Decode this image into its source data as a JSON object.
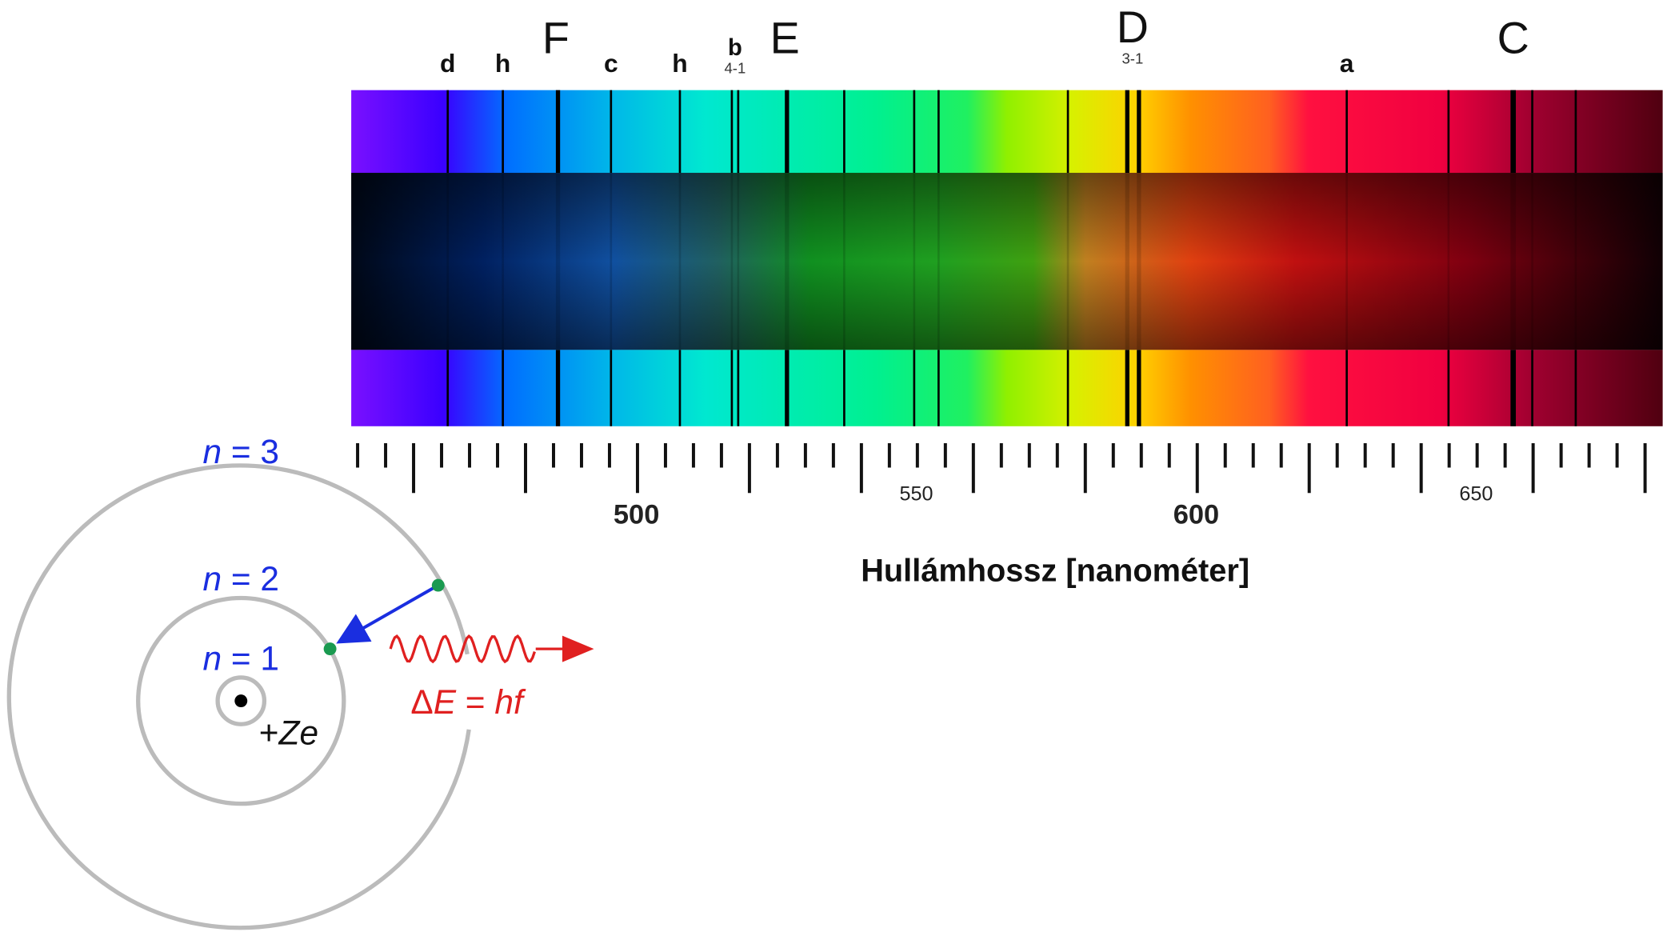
{
  "spectrum": {
    "line_labels": [
      {
        "text": "d"
      },
      {
        "text": "h"
      },
      {
        "text": "F"
      },
      {
        "text": "c"
      },
      {
        "text": "h"
      },
      {
        "text": "b",
        "sub": "4-1"
      },
      {
        "text": "E"
      },
      {
        "text": "D",
        "sub": "3-1"
      },
      {
        "text": "a"
      },
      {
        "text": "C"
      }
    ],
    "axis_labels": [
      "500",
      "550",
      "600",
      "650"
    ],
    "axis_title": "Hullámhossz [nanométer]"
  },
  "bohr_model": {
    "orbits": [
      {
        "symbol": "n",
        "rest": "= 3"
      },
      {
        "symbol": "n",
        "rest": "= 2"
      },
      {
        "symbol": "n",
        "rest": "= 1"
      }
    ],
    "nucleus": {
      "sign": "+",
      "symbol": "Ze"
    },
    "photon": {
      "delta": "Δ",
      "symbol": "E",
      "eq": " = ",
      "rhs": "hf"
    }
  }
}
